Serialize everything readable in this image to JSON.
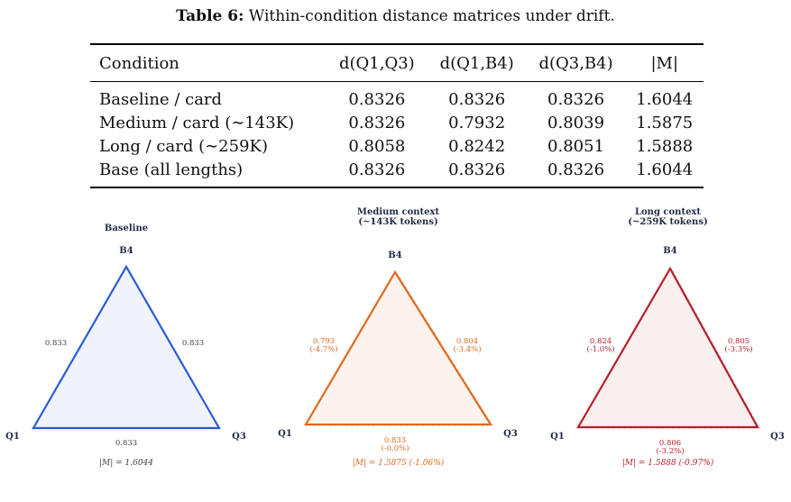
{
  "caption": {
    "label": "Table 6:",
    "text": "Within-condition distance matrices under drift."
  },
  "table": {
    "headers": [
      "Condition",
      "d(Q1,Q3)",
      "d(Q1,B4)",
      "d(Q3,B4)",
      "|M|"
    ],
    "rows": [
      [
        "Baseline / card",
        "0.8326",
        "0.8326",
        "0.8326",
        "1.6044"
      ],
      [
        "Medium / card (∼143K)",
        "0.8326",
        "0.7932",
        "0.8039",
        "1.5875"
      ],
      [
        "Long / card (∼259K)",
        "0.8058",
        "0.8242",
        "0.8051",
        "1.5888"
      ],
      [
        "Base (all lengths)",
        "0.8326",
        "0.8326",
        "0.8326",
        "1.6044"
      ]
    ]
  },
  "chart_data": [
    {
      "type": "triangle",
      "title": "Baseline",
      "vertices": [
        "Q1",
        "Q3",
        "B4"
      ],
      "color": "#2a5bd7",
      "fill": "#f1f3fa",
      "edges": {
        "q1_b4": [
          "0.833"
        ],
        "q3_b4": [
          "0.833"
        ],
        "q1_q3": [
          "0.833"
        ]
      },
      "edge_values": {
        "q1_q3": 0.8326,
        "q1_b4": 0.8326,
        "q3_b4": 0.8326
      },
      "magnitude": "|M| = 1.6044"
    },
    {
      "type": "triangle",
      "title": "Medium context\n(~143K tokens)",
      "vertices": [
        "Q1",
        "Q3",
        "B4"
      ],
      "color": "#e06a1f",
      "fill": "#fdf3ec",
      "edges": {
        "q1_b4": [
          "0.793",
          "(-4.7%)"
        ],
        "q3_b4": [
          "0.804",
          "(-3.4%)"
        ],
        "q1_q3": [
          "0.833",
          "(-0.0%)"
        ]
      },
      "edge_values": {
        "q1_q3": 0.8326,
        "q1_b4": 0.7932,
        "q3_b4": 0.8039
      },
      "magnitude": "|M| = 1.5875  (-1.06%)"
    },
    {
      "type": "triangle",
      "title": "Long context\n(~259K tokens)",
      "vertices": [
        "Q1",
        "Q3",
        "B4"
      ],
      "color": "#b5202b",
      "fill": "#f8efef",
      "edges": {
        "q1_b4": [
          "0.824",
          "(-1.0%)"
        ],
        "q3_b4": [
          "0.805",
          "(-3.3%)"
        ],
        "q1_q3": [
          "0.806",
          "(-3.2%)"
        ]
      },
      "edge_values": {
        "q1_q3": 0.8058,
        "q1_b4": 0.8242,
        "q3_b4": 0.8051
      },
      "magnitude": "|M| = 1.5888  (-0.97%)"
    }
  ]
}
